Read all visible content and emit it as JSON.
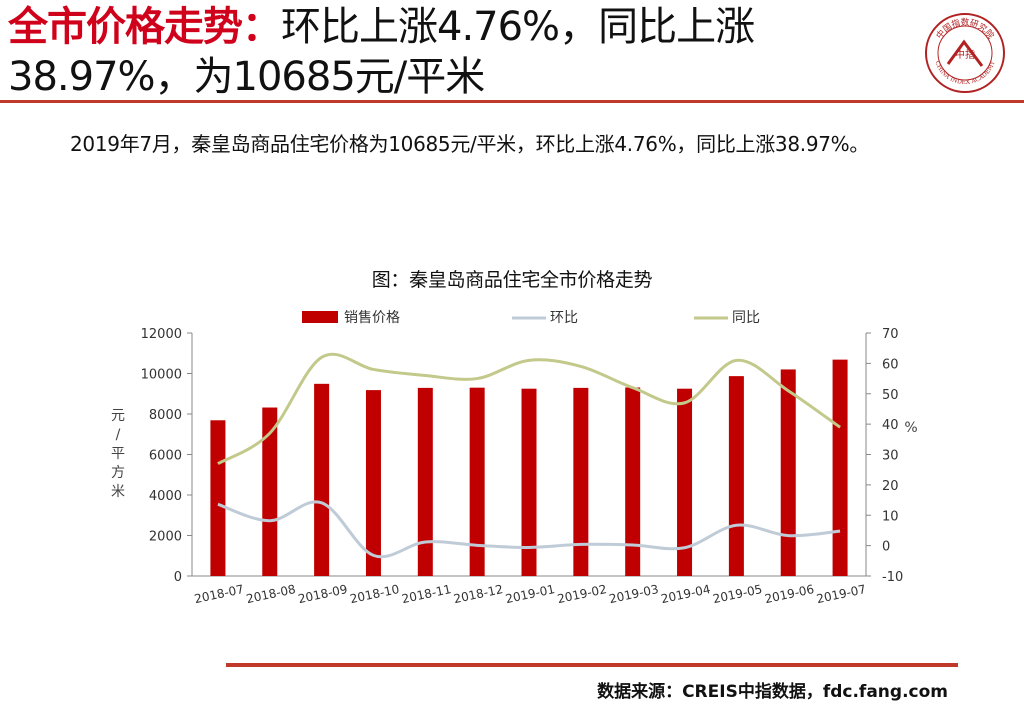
{
  "header": {
    "title_red": "全市价格走势：",
    "title_line1_rest": "环比上涨4.76%，同比上涨",
    "title_line2": "38.97%，为10685元/平米",
    "logo_text": "CHINA INDEX ACADEMY",
    "logo_top_text": "中国指数研究院",
    "logo_center": "中指"
  },
  "summary": "2019年7月，秦皇岛商品住宅价格为10685元/平米，环比上涨4.76%，同比上涨38.97%。",
  "source": "数据来源：CREIS中指数据，fdc.fang.com",
  "colors": {
    "accent": "#c0392b",
    "bar": "#c00000",
    "mom": "#bfcbd6",
    "yoy": "#c3c98a"
  },
  "chart_data": {
    "type": "bar+line",
    "title": "图：秦皇岛商品住宅全市价格走势",
    "categories": [
      "2018-07",
      "2018-08",
      "2018-09",
      "2018-10",
      "2018-11",
      "2018-12",
      "2019-01",
      "2019-02",
      "2019-03",
      "2019-04",
      "2019-05",
      "2019-06",
      "2019-07"
    ],
    "series": [
      {
        "name": "销售价格",
        "type": "bar",
        "axis": "left",
        "values": [
          7690,
          8320,
          9490,
          9180,
          9290,
          9300,
          9250,
          9290,
          9310,
          9250,
          9870,
          10200,
          10685
        ]
      },
      {
        "name": "环比",
        "type": "line",
        "axis": "right",
        "values": [
          13.6,
          8.2,
          14.1,
          -3.2,
          1.2,
          0.1,
          -0.6,
          0.4,
          0.2,
          -0.7,
          6.7,
          3.3,
          4.76
        ]
      },
      {
        "name": "同比",
        "type": "line",
        "axis": "right",
        "values": [
          27,
          37,
          62,
          58,
          56,
          55,
          61,
          59,
          52,
          47,
          61,
          51,
          38.97
        ]
      }
    ],
    "ylabel_left": "元/平方米",
    "ylabel_right": "%",
    "ylim_left": [
      0,
      12000
    ],
    "yticks_left": [
      0,
      2000,
      4000,
      6000,
      8000,
      10000,
      12000
    ],
    "ylim_right": [
      -10,
      70
    ],
    "yticks_right": [
      -10,
      0,
      10,
      20,
      30,
      40,
      50,
      60,
      70
    ],
    "legend_position": "top",
    "grid": false
  }
}
